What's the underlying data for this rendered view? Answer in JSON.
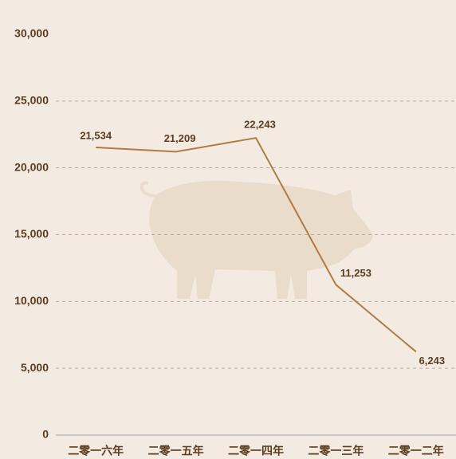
{
  "chart_data": {
    "type": "line",
    "categories": [
      "二零一六年",
      "二零一五年",
      "二零一四年",
      "二零一三年",
      "二零一二年"
    ],
    "series": [
      {
        "color": "#b27a42",
        "values": [
          21534,
          21209,
          22243,
          11253,
          6243
        ],
        "value_labels": [
          "21,534",
          "21,209",
          "22,243",
          "11,253",
          "6,243"
        ]
      }
    ],
    "ylim": [
      0,
      30000
    ],
    "yticks": [
      0,
      {
        "value": 5000,
        "label": "5,000"
      },
      {
        "value": 10000,
        "label": "10,000"
      },
      {
        "value": 15000,
        "label": "15,000"
      },
      {
        "value": 20000,
        "label": "20,000"
      },
      {
        "value": 25000,
        "label": "25,000"
      },
      {
        "value": 30000,
        "label": "30,000"
      }
    ],
    "grid": true
  }
}
